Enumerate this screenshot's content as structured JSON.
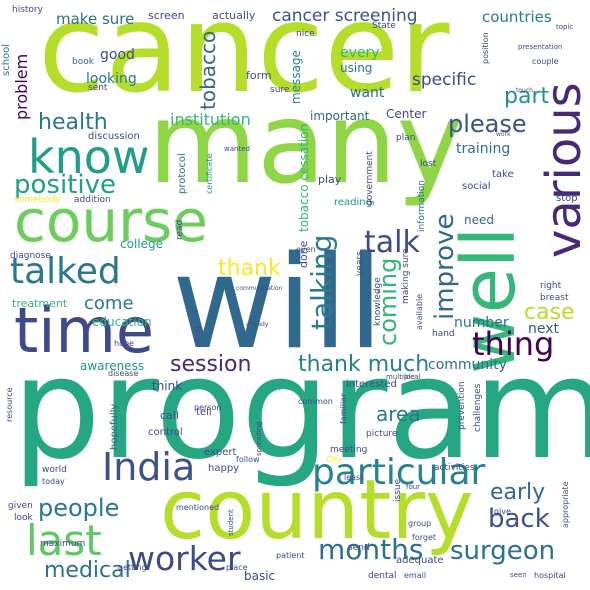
{
  "words": [
    {
      "text": "cancer",
      "color": "#b5de2b"
    },
    {
      "text": "many",
      "color": "#8ed645"
    },
    {
      "text": "will",
      "color": "#31688e"
    },
    {
      "text": "program",
      "color": "#26a784"
    },
    {
      "text": "country",
      "color": "#b5de2b"
    },
    {
      "text": "course",
      "color": "#6ccd5a"
    },
    {
      "text": "time",
      "color": "#3e4a89"
    },
    {
      "text": "know",
      "color": "#1f9e89"
    },
    {
      "text": "well",
      "color": "#35b779"
    },
    {
      "text": "various",
      "color": "#482878"
    },
    {
      "text": "India",
      "color": "#3b528b"
    },
    {
      "text": "last",
      "color": "#5ec962"
    },
    {
      "text": "particular",
      "color": "#26828e"
    },
    {
      "text": "talked",
      "color": "#2a788e"
    },
    {
      "text": "positive",
      "color": "#1f9e89"
    },
    {
      "text": "worker",
      "color": "#3e4a89"
    },
    {
      "text": "months",
      "color": "#2d708e"
    },
    {
      "text": "surgeon",
      "color": "#2c728e"
    },
    {
      "text": "people",
      "color": "#2a788e"
    },
    {
      "text": "thing",
      "color": "#440154"
    },
    {
      "text": "talk",
      "color": "#3e4a89"
    },
    {
      "text": "talking",
      "color": "#287d8e"
    },
    {
      "text": "improve",
      "color": "#31688e"
    },
    {
      "text": "coming",
      "color": "#35b779"
    },
    {
      "text": "health",
      "color": "#2a788e"
    },
    {
      "text": "please",
      "color": "#3b528b"
    },
    {
      "text": "session",
      "color": "#482878"
    },
    {
      "text": "thank much",
      "color": "#26828e"
    },
    {
      "text": "thank",
      "color": "#fde725"
    },
    {
      "text": "back",
      "color": "#3b528b"
    },
    {
      "text": "early",
      "color": "#31688e"
    },
    {
      "text": "medical",
      "color": "#2c728e"
    },
    {
      "text": "tobacco",
      "color": "#31688e"
    },
    {
      "text": "cancer screening",
      "color": "#3b528b"
    },
    {
      "text": "area",
      "color": "#2a788e"
    },
    {
      "text": "case",
      "color": "#b5de2b"
    },
    {
      "text": "part",
      "color": "#21918c"
    },
    {
      "text": "come",
      "color": "#2a788e"
    },
    {
      "text": "problem",
      "color": "#440154"
    },
    {
      "text": "institution",
      "color": "#35b779"
    },
    {
      "text": "specific",
      "color": "#3e4a89"
    },
    {
      "text": "countries",
      "color": "#287d8e"
    },
    {
      "text": "make sure",
      "color": "#2c728e"
    },
    {
      "text": "every",
      "color": "#35b779"
    },
    {
      "text": "good",
      "color": "#3e4a89"
    },
    {
      "text": "looking",
      "color": "#2a788e"
    },
    {
      "text": "want",
      "color": "#31688e"
    },
    {
      "text": "training",
      "color": "#2c728e"
    },
    {
      "text": "community",
      "color": "#2d708e"
    },
    {
      "text": "number",
      "color": "#2c728e"
    },
    {
      "text": "next",
      "color": "#3b528b"
    },
    {
      "text": "education",
      "color": "#35b779"
    },
    {
      "text": "college",
      "color": "#1f9e89"
    },
    {
      "text": "treatment",
      "color": "#35b779"
    },
    {
      "text": "awareness",
      "color": "#21918c"
    },
    {
      "text": "message",
      "color": "#26828e"
    },
    {
      "text": "tobacco cessation",
      "color": "#35b779"
    },
    {
      "text": "important",
      "color": "#31688e"
    },
    {
      "text": "Center",
      "color": "#3e4a89"
    },
    {
      "text": "form",
      "color": "#3b528b"
    },
    {
      "text": "using",
      "color": "#2a788e"
    },
    {
      "text": "actually",
      "color": "#3b528b"
    },
    {
      "text": "screen",
      "color": "#3e4a89"
    },
    {
      "text": "nice",
      "color": "#3e4a89"
    },
    {
      "text": "State",
      "color": "#3e4a89"
    },
    {
      "text": "history",
      "color": "#3e4a89"
    },
    {
      "text": "school",
      "color": "#2c728e"
    },
    {
      "text": "book",
      "color": "#31688e"
    },
    {
      "text": "sent",
      "color": "#3e4a89"
    },
    {
      "text": "discussion",
      "color": "#3e4a89"
    },
    {
      "text": "wanted",
      "color": "#3e4a89"
    },
    {
      "text": "protocol",
      "color": "#2c728e"
    },
    {
      "text": "certificate",
      "color": "#21918c"
    },
    {
      "text": "somebody",
      "color": "#fde725"
    },
    {
      "text": "addition",
      "color": "#3e4a89"
    },
    {
      "text": "diagnose",
      "color": "#3e4a89"
    },
    {
      "text": "read",
      "color": "#3e4a89"
    },
    {
      "text": "play",
      "color": "#3e4a89"
    },
    {
      "text": "done",
      "color": "#3e4a89"
    },
    {
      "text": "reading",
      "color": "#21918c"
    },
    {
      "text": "government",
      "color": "#3e4a89"
    },
    {
      "text": "information",
      "color": "#2c728e"
    },
    {
      "text": "social",
      "color": "#3e4a89"
    },
    {
      "text": "take",
      "color": "#3e4a89"
    },
    {
      "text": "lost",
      "color": "#3e4a89"
    },
    {
      "text": "plan",
      "color": "#3e4a89"
    },
    {
      "text": "stop",
      "color": "#3e4a89"
    },
    {
      "text": "need",
      "color": "#31688e"
    },
    {
      "text": "right",
      "color": "#3e4a89"
    },
    {
      "text": "breast",
      "color": "#3e4a89"
    },
    {
      "text": "making sure",
      "color": "#3e4a89"
    },
    {
      "text": "available",
      "color": "#3e4a89"
    },
    {
      "text": "hand",
      "color": "#3e4a89"
    },
    {
      "text": "knowledge",
      "color": "#3e4a89"
    },
    {
      "text": "years",
      "color": "#3e4a89"
    },
    {
      "text": "even",
      "color": "#3e4a89"
    },
    {
      "text": "communication",
      "color": "#3e4a89"
    },
    {
      "text": "hope",
      "color": "#3e4a89"
    },
    {
      "text": "short",
      "color": "#3e4a89"
    },
    {
      "text": "already",
      "color": "#3e4a89"
    },
    {
      "text": "disease",
      "color": "#3e4a89"
    },
    {
      "text": "think",
      "color": "#3e4a89"
    },
    {
      "text": "call",
      "color": "#3e4a89"
    },
    {
      "text": "tell",
      "color": "#3e4a89"
    },
    {
      "text": "hopefully",
      "color": "#31688e"
    },
    {
      "text": "control",
      "color": "#3e4a89"
    },
    {
      "text": "person",
      "color": "#3e4a89"
    },
    {
      "text": "resource",
      "color": "#3e4a89"
    },
    {
      "text": "world",
      "color": "#3e4a89"
    },
    {
      "text": "today",
      "color": "#3e4a89"
    },
    {
      "text": "given",
      "color": "#3e4a89"
    },
    {
      "text": "look",
      "color": "#3e4a89"
    },
    {
      "text": "maximum",
      "color": "#3e4a89"
    },
    {
      "text": "getting",
      "color": "#3e4a89"
    },
    {
      "text": "place",
      "color": "#3e4a89"
    },
    {
      "text": "patient",
      "color": "#3e4a89"
    },
    {
      "text": "basic",
      "color": "#3e4a89"
    },
    {
      "text": "expert",
      "color": "#3e4a89"
    },
    {
      "text": "happy",
      "color": "#3e4a89"
    },
    {
      "text": "mentioned",
      "color": "#3e4a89"
    },
    {
      "text": "follow",
      "color": "#3e4a89"
    },
    {
      "text": "City",
      "color": "#fde725"
    },
    {
      "text": "meeting",
      "color": "#3e4a89"
    },
    {
      "text": "least",
      "color": "#3e4a89"
    },
    {
      "text": "common",
      "color": "#3e4a89"
    },
    {
      "text": "interested",
      "color": "#3e4a89"
    },
    {
      "text": "picture",
      "color": "#3e4a89"
    },
    {
      "text": "familiar",
      "color": "#3e4a89"
    },
    {
      "text": "prevention",
      "color": "#3e4a89"
    },
    {
      "text": "challenges",
      "color": "#3e4a89"
    },
    {
      "text": "activities",
      "color": "#3e4a89"
    },
    {
      "text": "give",
      "color": "#3e4a89"
    },
    {
      "text": "issue",
      "color": "#3e4a89"
    },
    {
      "text": "group",
      "color": "#3e4a89"
    },
    {
      "text": "forget",
      "color": "#3e4a89"
    },
    {
      "text": "dental",
      "color": "#3e4a89"
    },
    {
      "text": "email",
      "color": "#3e4a89"
    },
    {
      "text": "send",
      "color": "#3e4a89"
    },
    {
      "text": "adequate",
      "color": "#3e4a89"
    },
    {
      "text": "appropriate",
      "color": "#3e4a89"
    },
    {
      "text": "hospital",
      "color": "#3e4a89"
    },
    {
      "text": "seen",
      "color": "#3e4a89"
    },
    {
      "text": "student",
      "color": "#3e4a89"
    },
    {
      "text": "sure",
      "color": "#3e4a89"
    },
    {
      "text": "position",
      "color": "#3e4a89"
    },
    {
      "text": "presentation",
      "color": "#3e4a89"
    },
    {
      "text": "topic",
      "color": "#3e4a89"
    },
    {
      "text": "couple",
      "color": "#3e4a89"
    },
    {
      "text": "touch",
      "color": "#3e4a89"
    },
    {
      "text": "work",
      "color": "#3e4a89"
    },
    {
      "text": "multiple",
      "color": "#3e4a89"
    },
    {
      "text": "four",
      "color": "#3e4a89"
    },
    {
      "text": "local",
      "color": "#3e4a89"
    },
    {
      "text": "spreading",
      "color": "#3e4a89"
    }
  ]
}
